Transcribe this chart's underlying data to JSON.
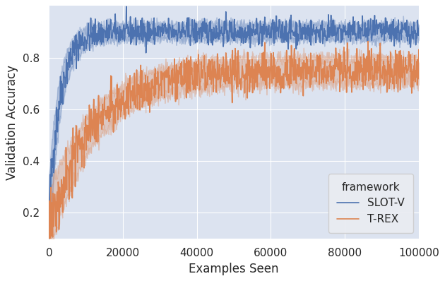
{
  "xlabel": "Examples Seen",
  "ylabel": "Validation Accuracy",
  "xlim": [
    0,
    100000
  ],
  "ylim": [
    0.1,
    1.0
  ],
  "x_ticks": [
    0,
    20000,
    40000,
    60000,
    80000,
    100000
  ],
  "y_ticks": [
    0.2,
    0.4,
    0.6,
    0.8
  ],
  "slot_v_color": "#4c72b0",
  "trex_color": "#dd8452",
  "slot_v_fill_alpha": 0.3,
  "trex_fill_alpha": 0.3,
  "background_color": "#dce3f0",
  "legend_title": "framework",
  "legend_labels": [
    "SLOT-V",
    "T-REX"
  ],
  "n_points": 1000,
  "random_seed": 42
}
